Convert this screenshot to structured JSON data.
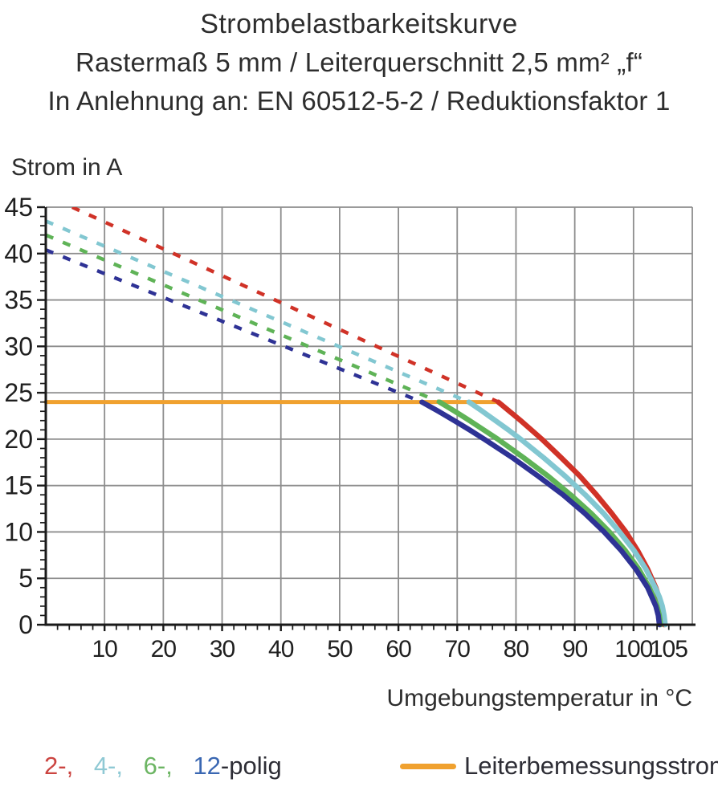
{
  "title": {
    "line1": "Strombelastbarkeitskurve",
    "line2": "Rastermaß 5 mm / Leiterquerschnitt 2,5 mm² „f“",
    "line3": "In Anlehnung an: EN 60512-5-2 / Reduktionsfaktor 1"
  },
  "axis_labels": {
    "y": "Strom in A",
    "x": "Umgebungstemperatur in °C"
  },
  "legend": {
    "pole_items": [
      {
        "label": "2-,",
        "color": "#cb4440"
      },
      {
        "label": "4-,",
        "color": "#8fc9d4"
      },
      {
        "label": "6-,",
        "color": "#6cb563"
      },
      {
        "label": "12",
        "color": "#3a67b2"
      }
    ],
    "pole_suffix": "-polig",
    "rated_label": "Leiterbemessungsstrom",
    "rated_color": "#f0a12f",
    "text_color": "#2d2d35"
  },
  "chart_data": {
    "type": "line",
    "title": "Strombelastbarkeitskurve",
    "xlabel": "Umgebungstemperatur in °C",
    "ylabel": "Strom in A",
    "xlim": [
      0,
      110
    ],
    "ylim": [
      0,
      45
    ],
    "x_ticks": [
      10,
      20,
      30,
      40,
      50,
      60,
      70,
      80,
      90,
      100,
      105
    ],
    "y_ticks": [
      0,
      5,
      10,
      15,
      20,
      25,
      30,
      35,
      40,
      45
    ],
    "x_gridline_step": 10,
    "y_gridline_step": 5,
    "x_minor_tick_step": 2,
    "y_minor_tick_step": 1,
    "grid": true,
    "grid_color": "#8d8d8d",
    "axis_color": "#1a1a1a",
    "rated_current": {
      "label": "Leiterbemessungsstrom",
      "value": 24,
      "x_start": 0,
      "x_end": 77,
      "color": "#f0a12f"
    },
    "series": [
      {
        "name": "2-polig",
        "color": "#d03227",
        "dashed_points": [
          [
            4.5,
            45
          ],
          [
            77,
            24
          ]
        ],
        "solid_points": [
          [
            77,
            24
          ],
          [
            78.9,
            23
          ],
          [
            80.8,
            22
          ],
          [
            82.6,
            21
          ],
          [
            84.4,
            20
          ],
          [
            87.7,
            18
          ],
          [
            90.9,
            16
          ],
          [
            93.7,
            14
          ],
          [
            96.3,
            12
          ],
          [
            98.7,
            10
          ],
          [
            100.7,
            8
          ],
          [
            102.4,
            6
          ],
          [
            103.8,
            4
          ],
          [
            104.3,
            3
          ],
          [
            104.8,
            2
          ],
          [
            105.1,
            1
          ],
          [
            105.2,
            0
          ]
        ]
      },
      {
        "name": "4-polig",
        "color": "#82c7d1",
        "dashed_points": [
          [
            0,
            43.5
          ],
          [
            72,
            24
          ]
        ],
        "solid_points": [
          [
            72,
            24
          ],
          [
            74.3,
            23
          ],
          [
            76.5,
            22
          ],
          [
            78.7,
            21
          ],
          [
            80.8,
            20
          ],
          [
            84.7,
            18
          ],
          [
            88.4,
            16
          ],
          [
            91.8,
            14
          ],
          [
            94.9,
            12
          ],
          [
            97.6,
            10
          ],
          [
            100.1,
            8
          ],
          [
            102.1,
            6
          ],
          [
            103.7,
            4
          ],
          [
            104.4,
            3
          ],
          [
            104.9,
            2
          ],
          [
            105.2,
            1
          ],
          [
            105.4,
            0
          ]
        ]
      },
      {
        "name": "6-polig",
        "color": "#5fb357",
        "dashed_points": [
          [
            0,
            42
          ],
          [
            67,
            24
          ]
        ],
        "solid_points": [
          [
            67,
            24
          ],
          [
            69.6,
            23
          ],
          [
            72.1,
            22
          ],
          [
            74.5,
            21
          ],
          [
            76.9,
            20
          ],
          [
            81.3,
            18
          ],
          [
            85.5,
            16
          ],
          [
            89.3,
            14
          ],
          [
            92.8,
            12
          ],
          [
            95.9,
            10
          ],
          [
            98.6,
            8
          ],
          [
            100.9,
            6
          ],
          [
            102.7,
            4
          ],
          [
            103.4,
            3
          ],
          [
            104,
            2
          ],
          [
            104.4,
            1
          ],
          [
            104.6,
            0
          ]
        ]
      },
      {
        "name": "12-polig",
        "color": "#2e3295",
        "dashed_points": [
          [
            0,
            40.4
          ],
          [
            64,
            24
          ]
        ],
        "solid_points": [
          [
            64,
            24
          ],
          [
            66.8,
            23
          ],
          [
            69.5,
            22
          ],
          [
            72.1,
            21
          ],
          [
            74.6,
            20
          ],
          [
            79.4,
            18
          ],
          [
            83.8,
            16
          ],
          [
            88,
            14
          ],
          [
            91.7,
            12
          ],
          [
            95,
            10
          ],
          [
            97.9,
            8
          ],
          [
            100.4,
            6
          ],
          [
            102.4,
            4
          ],
          [
            103.1,
            3
          ],
          [
            103.8,
            2
          ],
          [
            104.2,
            1
          ],
          [
            104.4,
            0
          ]
        ]
      }
    ]
  }
}
